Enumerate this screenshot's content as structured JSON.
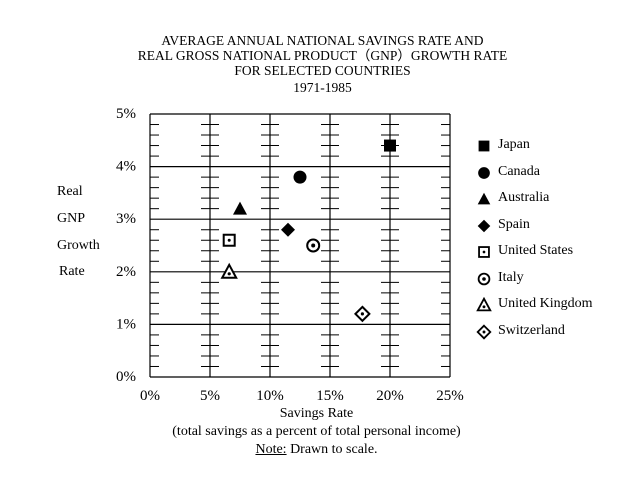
{
  "chart_data": {
    "type": "scatter",
    "title_lines": [
      "AVERAGE ANNUAL NATIONAL SAVINGS RATE AND",
      "REAL GROSS NATIONAL PRODUCT（GNP）GROWTH RATE",
      "FOR SELECTED COUNTRIES",
      "1971-1985"
    ],
    "xlabel": "Savings Rate",
    "xlabel_sub": "(total savings as a percent of total personal income)",
    "ylabel_lines": [
      "Real",
      "GNP",
      "Growth",
      "Rate"
    ],
    "note_label": "Note:",
    "note_text": " Drawn to scale.",
    "xlim": [
      0,
      25
    ],
    "ylim": [
      0,
      5
    ],
    "x_ticks": [
      "0%",
      "5%",
      "10%",
      "15%",
      "20%",
      "25%"
    ],
    "y_ticks": [
      "0%",
      "1%",
      "2%",
      "3%",
      "4%",
      "5%"
    ],
    "x_tick_values": [
      0,
      5,
      10,
      15,
      20,
      25
    ],
    "y_tick_values": [
      0,
      1,
      2,
      3,
      4,
      5
    ],
    "minor_y_step": 0.2,
    "grid": true,
    "legend_position": "right",
    "series": [
      {
        "name": "Japan",
        "marker": "filled-square",
        "x": 20.0,
        "y": 4.4
      },
      {
        "name": "Canada",
        "marker": "filled-circle",
        "x": 12.5,
        "y": 3.8
      },
      {
        "name": "Australia",
        "marker": "filled-triangle",
        "x": 7.5,
        "y": 3.2
      },
      {
        "name": "Spain",
        "marker": "filled-diamond",
        "x": 11.5,
        "y": 2.8
      },
      {
        "name": "United States",
        "marker": "dotted-square",
        "x": 6.6,
        "y": 2.6
      },
      {
        "name": "Italy",
        "marker": "dotted-circle",
        "x": 13.6,
        "y": 2.5
      },
      {
        "name": "United Kingdom",
        "marker": "dotted-triangle",
        "x": 6.6,
        "y": 2.0
      },
      {
        "name": "Switzerland",
        "marker": "dotted-diamond",
        "x": 17.7,
        "y": 1.2
      }
    ]
  }
}
